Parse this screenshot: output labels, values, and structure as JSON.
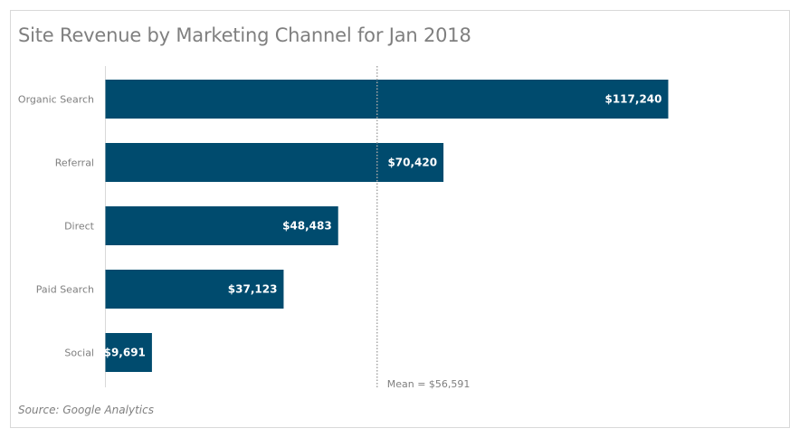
{
  "chart_data": {
    "type": "bar",
    "orientation": "horizontal",
    "title": "Site Revenue by Marketing Channel for Jan 2018",
    "categories": [
      "Organic Search",
      "Referral",
      "Direct",
      "Paid Search",
      "Social"
    ],
    "values": [
      117240,
      70420,
      48483,
      37123,
      9691
    ],
    "value_labels": [
      "$117,240",
      "$70,420",
      "$48,483",
      "$37,123",
      "$9,691"
    ],
    "xlabel": "",
    "ylabel": "",
    "xlim": [
      0,
      117240
    ],
    "grid": false,
    "mean": 56591,
    "mean_label": "Mean = $56,591",
    "source": "Source: Google Analytics",
    "bar_color": "#004b6e"
  }
}
